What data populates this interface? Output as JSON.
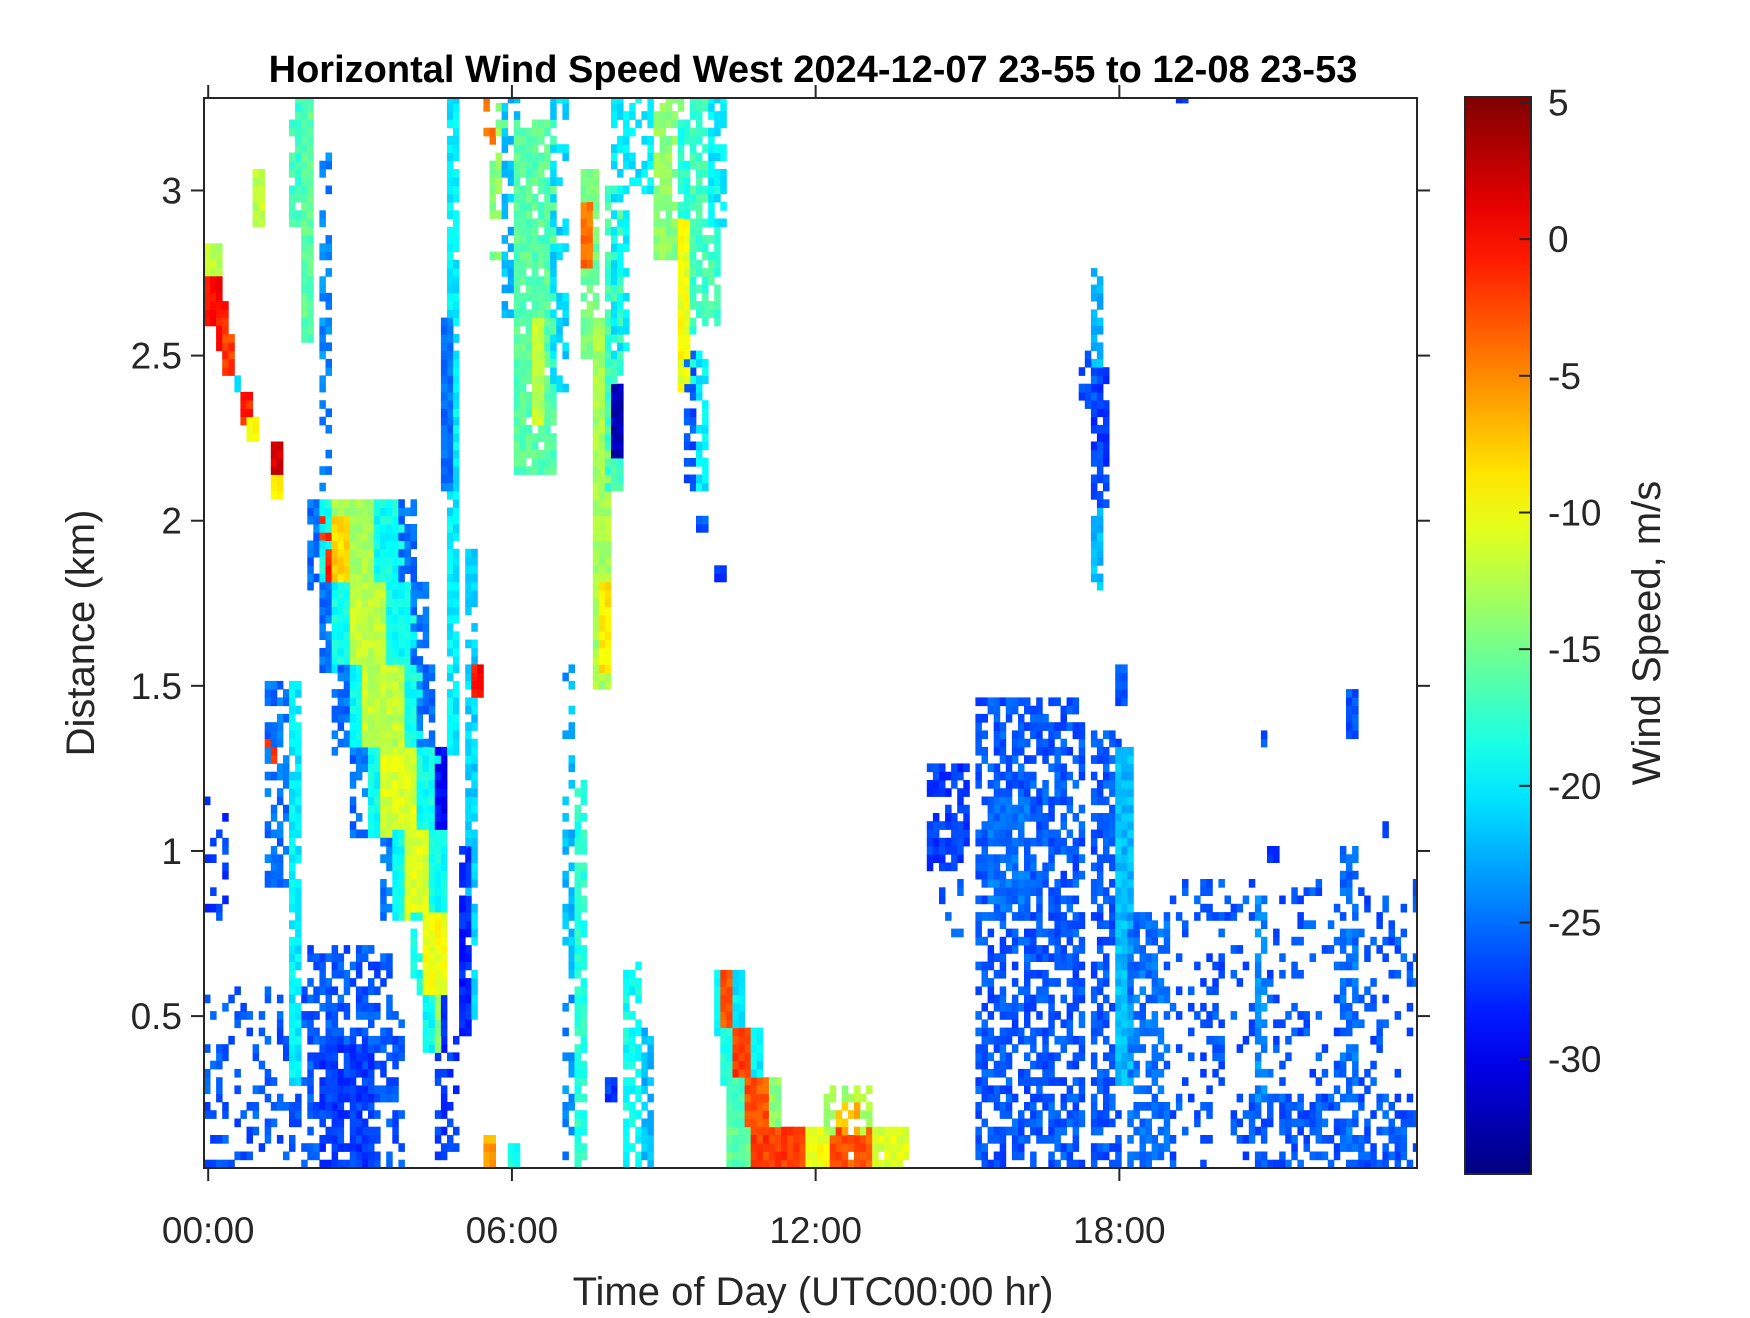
{
  "chart_data": {
    "type": "heatmap",
    "title": "Horizontal Wind Speed West 2024-12-07 23-55 to 12-08 23-53",
    "xlabel": "Time of Day (UTC00:00 hr)",
    "ylabel": "Distance (km)",
    "colorbar_label": "Wind Speed, m/s",
    "colormap": "jet",
    "xlim_hours": [
      -0.083,
      23.88
    ],
    "ylim_km": [
      0.04,
      3.28
    ],
    "clim": [
      -34.2,
      5.2
    ],
    "time_step_h": 0.12,
    "range_step_km": 0.025,
    "xticks": [
      {
        "value": 0,
        "label": "00:00"
      },
      {
        "value": 6,
        "label": "06:00"
      },
      {
        "value": 12,
        "label": "12:00"
      },
      {
        "value": 18,
        "label": "18:00"
      }
    ],
    "yticks": [
      {
        "value": 0.5,
        "label": "0.5"
      },
      {
        "value": 1,
        "label": "1"
      },
      {
        "value": 1.5,
        "label": "1.5"
      },
      {
        "value": 2,
        "label": "2"
      },
      {
        "value": 2.5,
        "label": "2.5"
      },
      {
        "value": 3,
        "label": "3"
      }
    ],
    "colorbar_ticks": [
      {
        "value": 5,
        "label": "5"
      },
      {
        "value": 0,
        "label": "0"
      },
      {
        "value": -5,
        "label": "-5"
      },
      {
        "value": -10,
        "label": "-10"
      },
      {
        "value": -15,
        "label": "-15"
      },
      {
        "value": -20,
        "label": "-20"
      },
      {
        "value": -25,
        "label": "-25"
      },
      {
        "value": -30,
        "label": "-30"
      }
    ],
    "blocks_columns": [
      "t_start_h",
      "t_end_h",
      "dist_start_km",
      "dist_end_km",
      "speed_ms",
      "coverage"
    ],
    "blocks": [
      [
        -0.08,
        0.2,
        2.74,
        2.82,
        -12,
        1
      ],
      [
        -0.08,
        0.2,
        2.6,
        2.74,
        0,
        1
      ],
      [
        0.2,
        0.35,
        2.52,
        2.66,
        -1,
        1
      ],
      [
        0.35,
        0.5,
        2.45,
        2.55,
        -2,
        1
      ],
      [
        0.55,
        0.62,
        2.4,
        2.43,
        -20,
        1
      ],
      [
        0.7,
        0.8,
        2.3,
        2.38,
        -1,
        1
      ],
      [
        0.85,
        0.95,
        2.26,
        2.3,
        -9,
        1
      ],
      [
        1.25,
        1.45,
        2.12,
        2.22,
        2,
        1
      ],
      [
        1.25,
        1.45,
        2.08,
        2.12,
        -9,
        1
      ],
      [
        1.15,
        1.25,
        1.27,
        1.35,
        -1,
        1
      ],
      [
        0.9,
        1.05,
        2.9,
        3.05,
        -12,
        1
      ],
      [
        1.7,
        1.85,
        2.9,
        3.3,
        -17,
        0.7
      ],
      [
        1.85,
        2.05,
        2.55,
        3.3,
        -16,
        1
      ],
      [
        2.3,
        2.42,
        2.1,
        3.1,
        -24,
        0.5
      ],
      [
        -0.08,
        2.0,
        0.05,
        0.58,
        -26,
        0.3
      ],
      [
        -0.08,
        0.3,
        0.8,
        1.15,
        -27,
        0.3
      ],
      [
        1.2,
        1.7,
        0.9,
        1.5,
        -25,
        0.5
      ],
      [
        2.0,
        3.6,
        0.05,
        0.7,
        -26,
        0.6
      ],
      [
        2.3,
        3.2,
        0.05,
        0.4,
        -27,
        0.85
      ],
      [
        3.4,
        3.8,
        0.05,
        0.5,
        -26,
        0.5
      ],
      [
        4.5,
        4.9,
        0.05,
        0.45,
        -27,
        0.4
      ],
      [
        1.65,
        1.75,
        0.3,
        1.5,
        -20,
        0.9
      ],
      [
        2.0,
        2.2,
        1.8,
        2.05,
        -25,
        0.7
      ],
      [
        2.2,
        2.5,
        1.8,
        2.05,
        -19,
        1
      ],
      [
        2.5,
        3.3,
        1.8,
        2.05,
        -13,
        1
      ],
      [
        3.3,
        3.8,
        1.8,
        2.05,
        -19,
        1
      ],
      [
        3.8,
        4.1,
        1.8,
        2.05,
        -25,
        0.7
      ],
      [
        2.2,
        2.6,
        1.75,
        2.0,
        -1,
        0.6
      ],
      [
        2.5,
        2.7,
        1.8,
        2.0,
        -8,
        1
      ],
      [
        2.3,
        2.5,
        1.55,
        1.8,
        -25,
        0.7
      ],
      [
        2.5,
        2.8,
        1.55,
        1.8,
        -19,
        1
      ],
      [
        2.8,
        3.6,
        1.55,
        1.8,
        -12,
        1
      ],
      [
        3.6,
        4.0,
        1.55,
        1.8,
        -19,
        1
      ],
      [
        4.0,
        4.3,
        1.55,
        1.8,
        -25,
        0.7
      ],
      [
        2.5,
        2.8,
        1.3,
        1.55,
        -25,
        0.6
      ],
      [
        2.8,
        3.1,
        1.3,
        1.55,
        -19,
        1
      ],
      [
        3.1,
        3.9,
        1.3,
        1.55,
        -12,
        1
      ],
      [
        3.9,
        4.2,
        1.3,
        1.55,
        -19,
        1
      ],
      [
        4.2,
        4.4,
        1.3,
        1.55,
        -25,
        0.7
      ],
      [
        2.9,
        3.2,
        1.05,
        1.3,
        -25,
        0.6
      ],
      [
        3.2,
        3.5,
        1.05,
        1.3,
        -19,
        1
      ],
      [
        3.5,
        4.2,
        1.05,
        1.3,
        -11,
        1
      ],
      [
        4.2,
        4.5,
        1.05,
        1.3,
        -19,
        1
      ],
      [
        4.5,
        4.6,
        1.05,
        1.3,
        -29,
        0.8
      ],
      [
        3.4,
        3.7,
        0.8,
        1.05,
        -25,
        0.6
      ],
      [
        3.7,
        3.9,
        0.8,
        1.05,
        -19,
        1
      ],
      [
        3.9,
        4.4,
        0.8,
        1.05,
        -11,
        1
      ],
      [
        4.4,
        4.6,
        0.8,
        1.05,
        -19,
        1
      ],
      [
        4.0,
        4.3,
        0.55,
        0.8,
        -19,
        0.7
      ],
      [
        4.3,
        4.6,
        0.55,
        0.8,
        -10,
        1
      ],
      [
        4.3,
        4.5,
        0.4,
        0.55,
        -19,
        0.8
      ],
      [
        4.5,
        4.6,
        0.4,
        0.55,
        -14,
        1
      ],
      [
        4.6,
        4.7,
        0.4,
        0.55,
        -28,
        1
      ],
      [
        4.75,
        4.95,
        1.3,
        3.3,
        -20,
        0.9
      ],
      [
        4.7,
        4.8,
        2.1,
        2.6,
        -25,
        1
      ],
      [
        5.15,
        5.3,
        0.5,
        1.9,
        -21,
        0.85
      ],
      [
        5.05,
        5.15,
        0.45,
        1.0,
        -28,
        0.8
      ],
      [
        5.3,
        5.4,
        1.48,
        1.55,
        0,
        1
      ],
      [
        5.6,
        5.8,
        2.8,
        3.3,
        -14,
        0.7
      ],
      [
        5.8,
        6.1,
        2.6,
        3.3,
        -22,
        0.6
      ],
      [
        6.1,
        6.8,
        2.15,
        3.2,
        -16,
        0.9
      ],
      [
        6.4,
        6.6,
        2.3,
        2.6,
        -12,
        1
      ],
      [
        6.8,
        7.0,
        2.4,
        3.3,
        -21,
        0.6
      ],
      [
        5.5,
        5.6,
        3.15,
        3.3,
        -4,
        0.5
      ],
      [
        7.0,
        7.2,
        0.05,
        1.55,
        -24,
        0.4
      ],
      [
        7.3,
        7.45,
        0.05,
        1.2,
        -18,
        0.8
      ],
      [
        7.0,
        7.15,
        0.6,
        1.5,
        -22,
        0.5
      ],
      [
        7.45,
        7.6,
        2.5,
        3.05,
        -15,
        0.9
      ],
      [
        7.45,
        7.55,
        2.78,
        2.95,
        -4,
        1
      ],
      [
        7.6,
        7.9,
        1.5,
        2.6,
        -13,
        1
      ],
      [
        7.8,
        7.9,
        1.55,
        1.8,
        -9,
        1
      ],
      [
        7.9,
        8.1,
        2.1,
        3.0,
        -17,
        0.9
      ],
      [
        8.0,
        8.1,
        2.2,
        2.4,
        -32,
        1
      ],
      [
        8.05,
        8.25,
        2.5,
        3.3,
        -20,
        0.6
      ],
      [
        8.2,
        9.0,
        3.0,
        3.3,
        -20,
        0.6
      ],
      [
        8.9,
        9.3,
        2.8,
        3.3,
        -14,
        0.8
      ],
      [
        9.3,
        9.6,
        2.4,
        3.2,
        -18,
        0.8
      ],
      [
        9.3,
        9.45,
        2.4,
        2.9,
        -10,
        1
      ],
      [
        9.6,
        10.0,
        2.6,
        3.3,
        -17,
        0.8
      ],
      [
        9.9,
        10.2,
        2.9,
        3.3,
        -20,
        0.7
      ],
      [
        9.4,
        9.6,
        2.1,
        2.5,
        -26,
        0.6
      ],
      [
        9.7,
        9.85,
        2.1,
        2.5,
        -20,
        0.7
      ],
      [
        9.7,
        9.8,
        1.97,
        2.0,
        -26,
        1
      ],
      [
        10.1,
        10.2,
        1.83,
        1.86,
        -27,
        1
      ],
      [
        5.5,
        5.6,
        0.05,
        0.12,
        -6,
        1
      ],
      [
        6.0,
        6.1,
        0.05,
        0.1,
        -19,
        1
      ],
      [
        8.3,
        8.5,
        0.05,
        0.65,
        -19,
        0.7
      ],
      [
        8.6,
        8.7,
        0.05,
        0.45,
        -22,
        0.7
      ],
      [
        7.9,
        8.0,
        0.25,
        0.3,
        -27,
        1
      ],
      [
        10.1,
        10.2,
        0.45,
        0.62,
        -20,
        1
      ],
      [
        10.2,
        10.45,
        0.45,
        0.62,
        -3,
        1
      ],
      [
        10.45,
        10.55,
        0.45,
        0.62,
        -20,
        1
      ],
      [
        10.2,
        10.45,
        0.3,
        0.45,
        -18,
        1
      ],
      [
        10.45,
        10.75,
        0.3,
        0.45,
        -2,
        1
      ],
      [
        10.75,
        10.9,
        0.3,
        0.45,
        -20,
        1
      ],
      [
        10.3,
        10.7,
        0.15,
        0.3,
        -17,
        1
      ],
      [
        10.7,
        11.1,
        0.15,
        0.3,
        -3,
        1
      ],
      [
        11.1,
        11.3,
        0.15,
        0.3,
        -14,
        1
      ],
      [
        10.3,
        10.8,
        0.04,
        0.15,
        -16,
        1
      ],
      [
        10.8,
        11.8,
        0.04,
        0.15,
        -2,
        1
      ],
      [
        11.8,
        12.3,
        0.04,
        0.15,
        -10,
        1
      ],
      [
        12.3,
        13.2,
        0.04,
        0.15,
        -3,
        0.9
      ],
      [
        13.2,
        13.8,
        0.04,
        0.15,
        -11,
        0.9
      ],
      [
        12.2,
        13.0,
        0.15,
        0.28,
        -13,
        0.7
      ],
      [
        12.5,
        12.8,
        0.15,
        0.22,
        -7,
        0.8
      ],
      [
        14.3,
        15.0,
        0.95,
        1.25,
        -27,
        0.7
      ],
      [
        14.5,
        14.8,
        0.7,
        0.95,
        -26,
        0.15
      ],
      [
        15.2,
        17.2,
        0.05,
        1.45,
        -26,
        0.6
      ],
      [
        15.4,
        16.2,
        0.8,
        1.15,
        -25,
        0.85
      ],
      [
        17.5,
        18.0,
        0.05,
        1.35,
        -26,
        0.6
      ],
      [
        18.0,
        18.25,
        0.3,
        1.3,
        -22,
        1
      ],
      [
        18.25,
        18.9,
        0.05,
        0.8,
        -25,
        0.6
      ],
      [
        18.0,
        18.1,
        1.45,
        1.55,
        -26,
        1
      ],
      [
        17.45,
        17.6,
        1.8,
        2.75,
        -22,
        0.8
      ],
      [
        17.55,
        17.7,
        2.05,
        2.45,
        -27,
        0.8
      ],
      [
        17.3,
        17.45,
        2.35,
        2.5,
        -26,
        0.5
      ],
      [
        19.0,
        23.9,
        0.05,
        0.9,
        -26,
        0.2
      ],
      [
        20.5,
        23.9,
        0.04,
        0.25,
        -26,
        0.55
      ],
      [
        20.7,
        20.85,
        0.25,
        0.85,
        -24,
        0.6
      ],
      [
        22.4,
        22.6,
        0.05,
        1.0,
        -25,
        0.6
      ],
      [
        22.5,
        22.6,
        1.35,
        1.48,
        -26,
        1
      ],
      [
        19.2,
        19.3,
        3.27,
        3.3,
        -27,
        1
      ],
      [
        20.8,
        20.9,
        1.33,
        1.36,
        -26,
        1
      ],
      [
        23.2,
        23.3,
        1.05,
        1.08,
        -26,
        1
      ],
      [
        21.0,
        21.1,
        0.98,
        1.01,
        -27,
        1
      ]
    ]
  }
}
